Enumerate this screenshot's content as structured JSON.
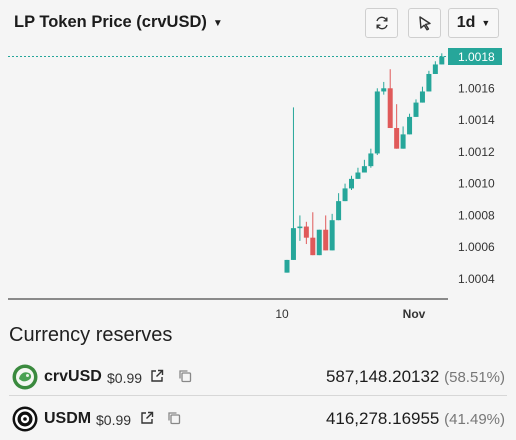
{
  "header": {
    "title": "LP Token Price (crvUSD)",
    "range_label": "1d"
  },
  "chart_data": {
    "type": "candlestick",
    "x_ticks": [
      "10",
      "Nov"
    ],
    "y_ticks": [
      "1.0016",
      "1.0014",
      "1.0012",
      "1.0010",
      "1.0008",
      "1.0006",
      "1.0004"
    ],
    "ylim": [
      1.00025,
      1.00195
    ],
    "last_price_label": "1.0018",
    "last_price": 1.0018,
    "colors": {
      "up": "#26a69a",
      "down": "#e05a5a",
      "price_line": "#26a69a"
    },
    "candles": [
      {
        "o": 1.00044,
        "h": 1.00052,
        "l": 1.00044,
        "c": 1.00052
      },
      {
        "o": 1.00052,
        "h": 1.00148,
        "l": 1.00052,
        "c": 1.00072
      },
      {
        "o": 1.00072,
        "h": 1.0008,
        "l": 1.00064,
        "c": 1.00073
      },
      {
        "o": 1.00073,
        "h": 1.00076,
        "l": 1.00062,
        "c": 1.00066
      },
      {
        "o": 1.00066,
        "h": 1.00082,
        "l": 1.00055,
        "c": 1.00055
      },
      {
        "o": 1.00055,
        "h": 1.00071,
        "l": 1.00055,
        "c": 1.00071
      },
      {
        "o": 1.00071,
        "h": 1.0008,
        "l": 1.00058,
        "c": 1.00058
      },
      {
        "o": 1.00058,
        "h": 1.00081,
        "l": 1.00058,
        "c": 1.00077
      },
      {
        "o": 1.00077,
        "h": 1.00094,
        "l": 1.00077,
        "c": 1.00089
      },
      {
        "o": 1.00089,
        "h": 1.001,
        "l": 1.00089,
        "c": 1.00097
      },
      {
        "o": 1.00097,
        "h": 1.00105,
        "l": 1.00096,
        "c": 1.00103
      },
      {
        "o": 1.00103,
        "h": 1.0011,
        "l": 1.00103,
        "c": 1.00107
      },
      {
        "o": 1.00107,
        "h": 1.00115,
        "l": 1.00107,
        "c": 1.00111
      },
      {
        "o": 1.00111,
        "h": 1.00122,
        "l": 1.0011,
        "c": 1.00119
      },
      {
        "o": 1.00119,
        "h": 1.0016,
        "l": 1.00118,
        "c": 1.00158
      },
      {
        "o": 1.00158,
        "h": 1.00164,
        "l": 1.00156,
        "c": 1.0016
      },
      {
        "o": 1.0016,
        "h": 1.00172,
        "l": 1.00135,
        "c": 1.00135
      },
      {
        "o": 1.00135,
        "h": 1.0015,
        "l": 1.00122,
        "c": 1.00122
      },
      {
        "o": 1.00122,
        "h": 1.00136,
        "l": 1.00122,
        "c": 1.00131
      },
      {
        "o": 1.00131,
        "h": 1.00144,
        "l": 1.00131,
        "c": 1.00142
      },
      {
        "o": 1.00142,
        "h": 1.00153,
        "l": 1.00142,
        "c": 1.00151
      },
      {
        "o": 1.00151,
        "h": 1.00161,
        "l": 1.00151,
        "c": 1.00158
      },
      {
        "o": 1.00158,
        "h": 1.00171,
        "l": 1.00158,
        "c": 1.00169
      },
      {
        "o": 1.00169,
        "h": 1.00177,
        "l": 1.00169,
        "c": 1.00175
      },
      {
        "o": 1.00175,
        "h": 1.00182,
        "l": 1.00175,
        "c": 1.0018
      }
    ]
  },
  "reserves": {
    "title": "Currency reserves",
    "items": [
      {
        "symbol": "crvUSD",
        "price": "$0.99",
        "amount": "587,148.20132",
        "share": "(58.51%)",
        "icon": "crvusd-coin-icon",
        "color": "#3a8a3e"
      },
      {
        "symbol": "USDM",
        "price": "$0.99",
        "amount": "416,278.16955",
        "share": "(41.49%)",
        "icon": "usdm-coin-icon",
        "color": "#111111"
      }
    ]
  }
}
